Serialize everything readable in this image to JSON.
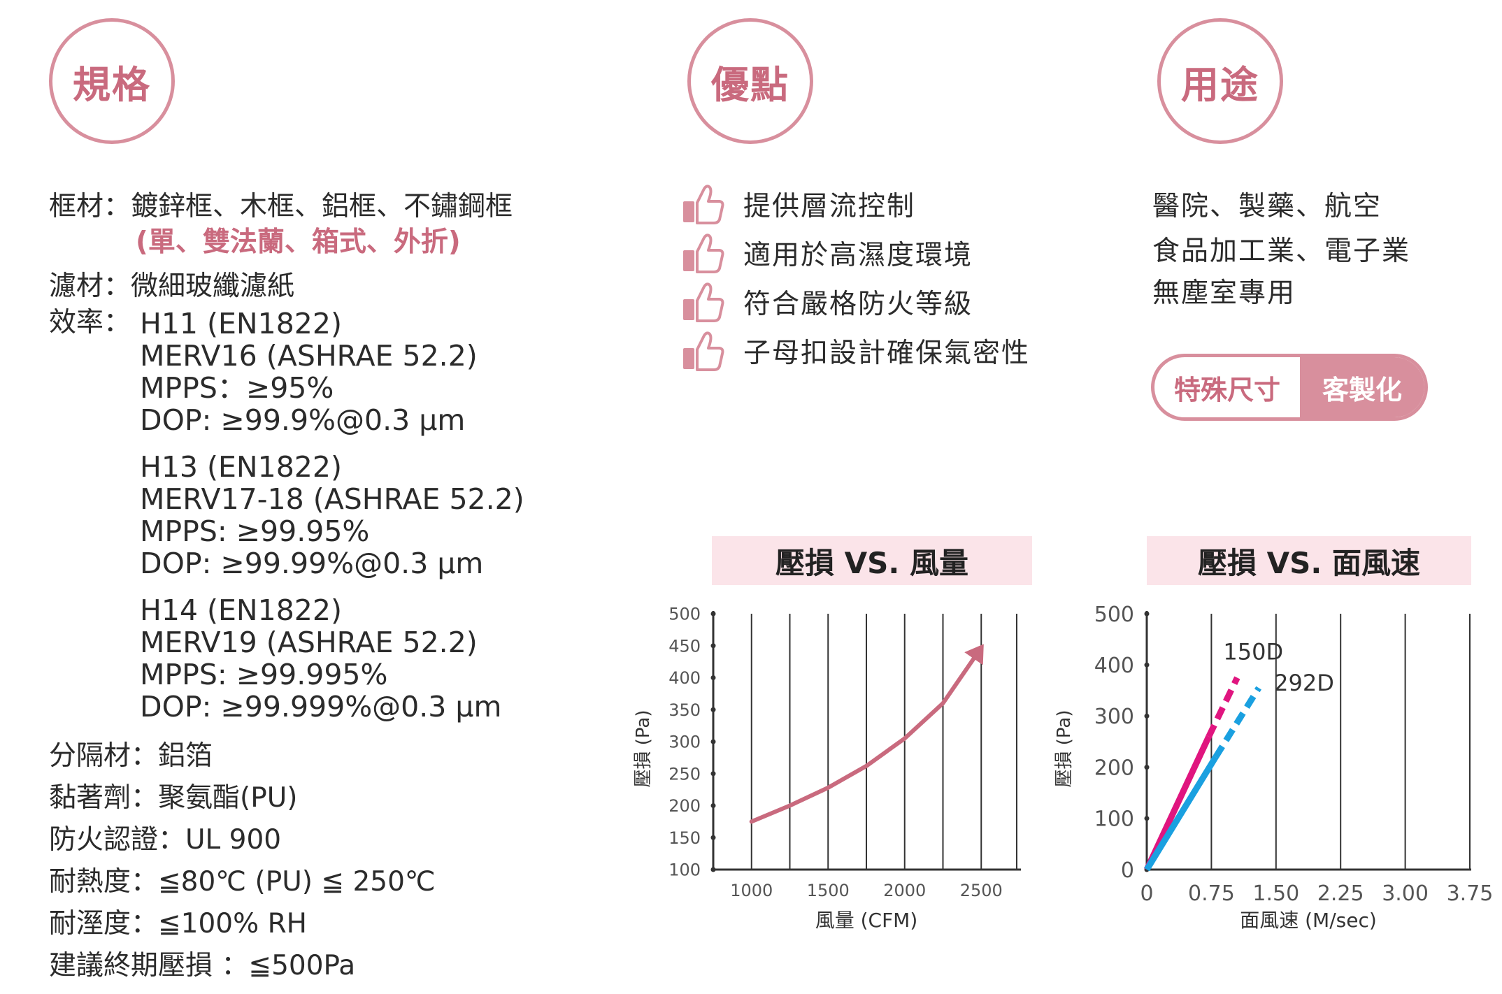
{
  "sections": {
    "spec_title": "規格",
    "advantages_title": "優點",
    "uses_title": "用途"
  },
  "specs": {
    "frame_label": "框材：",
    "frame_value": "鍍鋅框、木框、鋁框、不鏽鋼框",
    "frame_note": "(單、雙法蘭、箱式、外折)",
    "media_label": "濾材：",
    "media_value": "微細玻纖濾紙",
    "efficiency_label": "效率：",
    "efficiency_groups": [
      [
        "H11 (EN1822)",
        "MERV16 (ASHRAE 52.2)",
        "MPPS：≥95%",
        "DOP: ≥99.9%@0.3 µm"
      ],
      [
        "H13 (EN1822)",
        "MERV17-18 (ASHRAE 52.2)",
        "MPPS: ≥99.95%",
        "DOP: ≥99.99%@0.3 µm"
      ],
      [
        "H14 (EN1822)",
        "MERV19 (ASHRAE 52.2)",
        "MPPS: ≥99.995%",
        "DOP: ≥99.999%@0.3 µm"
      ]
    ],
    "separator": "分隔材：鋁箔",
    "adhesive": "黏著劑：聚氨酯(PU)",
    "fire_cert": "防火認證：UL 900",
    "heat_resistance": "耐熱度：≦80℃ (PU) ≦ 250℃",
    "humidity_resistance": "耐溼度：≦100% RH",
    "final_pressure_drop": "建議終期壓損 ：≦500Pa"
  },
  "advantages": [
    {
      "icon": "thumbs-up-icon",
      "text": "提供層流控制"
    },
    {
      "icon": "thumbs-up-icon",
      "text": "適用於高濕度環境"
    },
    {
      "icon": "thumbs-up-icon",
      "text": "符合嚴格防火等級"
    },
    {
      "icon": "thumbs-up-icon",
      "text": "子母扣設計確保氣密性"
    }
  ],
  "uses": [
    "醫院、製藥、航空",
    "食品加工業、電子業",
    "無塵室專用"
  ],
  "custom_badge": {
    "left": "特殊尺寸",
    "right": "客製化"
  },
  "colors": {
    "accent": "#d88f9d",
    "accent_text": "#c96a7e",
    "chart_title_bg": "#fbe4e9",
    "curve": "#c96a7e",
    "series_150d": "#e0157f",
    "series_292d": "#1aa0e0"
  },
  "chart_data": [
    {
      "type": "line",
      "title": "壓損 VS. 風量",
      "xlabel": "風量 (CFM)",
      "ylabel": "壓損 (Pa)",
      "xlim": [
        750,
        2750
      ],
      "ylim": [
        100,
        500
      ],
      "x_ticks": [
        "1000",
        "1500",
        "2000",
        "2500"
      ],
      "y_ticks": [
        "100",
        "150",
        "200",
        "250",
        "300",
        "350",
        "400",
        "450",
        "500"
      ],
      "grid": "vertical",
      "series": [
        {
          "x": [
            1000,
            1250,
            1500,
            1750,
            2000,
            2250,
            2480
          ],
          "y": [
            175,
            200,
            228,
            262,
            305,
            360,
            440
          ]
        }
      ]
    },
    {
      "type": "line",
      "title": "壓損 VS. 面風速",
      "xlabel": "面風速 (M/sec)",
      "ylabel": "壓損 (Pa)",
      "xlim": [
        0,
        3.75
      ],
      "ylim": [
        0,
        500
      ],
      "x_ticks": [
        "0",
        "0.75",
        "1.50",
        "2.25",
        "3.00",
        "3.75"
      ],
      "y_ticks": [
        "0",
        "100",
        "200",
        "300",
        "400",
        "500"
      ],
      "grid": "vertical",
      "series": [
        {
          "name": "150D",
          "x": [
            0,
            0.72,
            1.05
          ],
          "y": [
            0,
            260,
            375
          ]
        },
        {
          "name": "292D",
          "x": [
            0,
            0.8,
            1.3
          ],
          "y": [
            0,
            220,
            355
          ]
        }
      ]
    }
  ]
}
